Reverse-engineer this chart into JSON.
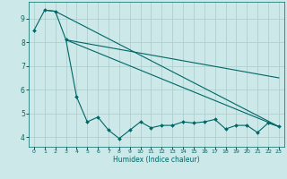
{
  "xlabel": "Humidex (Indice chaleur)",
  "bg_color": "#cce8e8",
  "grid_color": "#aacccc",
  "line_color": "#006666",
  "xlim": [
    -0.5,
    23.5
  ],
  "ylim": [
    3.6,
    9.7
  ],
  "xticks": [
    0,
    1,
    2,
    3,
    4,
    5,
    6,
    7,
    8,
    9,
    10,
    11,
    12,
    13,
    14,
    15,
    16,
    17,
    18,
    19,
    20,
    21,
    22,
    23
  ],
  "yticks": [
    4,
    5,
    6,
    7,
    8,
    9
  ],
  "line1_x": [
    0,
    1,
    2,
    3,
    4,
    5,
    6,
    7,
    8,
    9,
    10,
    11,
    12,
    13,
    14,
    15,
    16,
    17,
    18,
    19,
    20,
    21,
    22,
    23
  ],
  "line1_y": [
    8.5,
    9.35,
    9.3,
    8.1,
    5.7,
    4.65,
    4.85,
    4.3,
    3.95,
    4.3,
    4.65,
    4.4,
    4.5,
    4.5,
    4.65,
    4.6,
    4.65,
    4.75,
    4.35,
    4.5,
    4.5,
    4.2,
    4.6,
    4.45
  ],
  "line2_x": [
    1,
    2,
    23
  ],
  "line2_y": [
    9.35,
    9.3,
    4.45
  ],
  "line3_x": [
    3,
    23
  ],
  "line3_y": [
    8.1,
    4.45
  ],
  "line4_x": [
    3,
    23
  ],
  "line4_y": [
    8.1,
    6.5
  ]
}
